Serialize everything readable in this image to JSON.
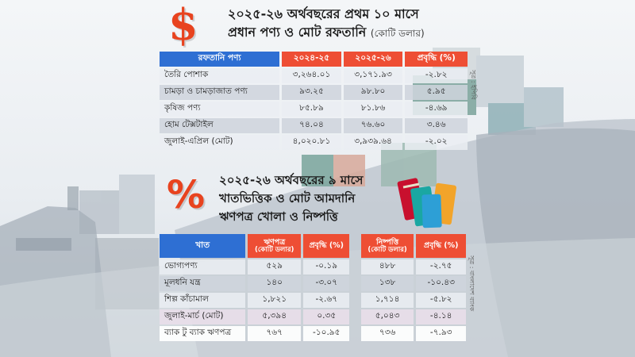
{
  "top": {
    "title_line1": "২০২৫-২৬ অর্থবছরের প্রথম ১০ মাসে",
    "title_line2": "প্রধান পণ্য ও মোট রফতানি",
    "title_unit": "(কোটি ডলার)",
    "symbol": "$",
    "headers": [
      "রফতানি পণ্য",
      "২০২৪-২৫",
      "২০২৫-২৬",
      "প্রবৃদ্ধি (%)"
    ],
    "rows": [
      {
        "item": "তৈরি পোশাক",
        "y2425": "৩,২৬৪.০১",
        "y2526": "৩,১৭১.৯৩",
        "growth": "-২.৮২"
      },
      {
        "item": "চামড়া ও চামড়াজাত পণ্য",
        "y2425": "৯৩.২৫",
        "y2526": "৯৮.৮০",
        "growth": "৫.৯৫"
      },
      {
        "item": "কৃষিজ পণ্য",
        "y2425": "৮৫.৮৯",
        "y2526": "৮১.৮৬",
        "growth": "-৪.৬৯"
      },
      {
        "item": "হোম টেক্সটাইল",
        "y2425": "৭৪.০৪",
        "y2526": "৭৬.৬০",
        "growth": "৩.৪৬"
      },
      {
        "item": "জুলাই-এপ্রিল (মোট)",
        "y2425": "৪,০২০.৮১",
        "y2526": "৩,৯৩৯.৬৪",
        "growth": "-২.০২"
      }
    ],
    "source": "সূত্র : ইপিবি"
  },
  "bottom": {
    "title_line1": "২০২৫-২৬ অর্থবছরের ৯ মাসে",
    "title_line2": "খাতভিত্তিক ও মোট আমদানি",
    "title_line3": "ঋণপত্র খোলা ও নিষ্পত্তি",
    "symbol": "%",
    "headers": {
      "sector": "খাত",
      "lc_open": "ঋণপত্র",
      "lc_open_unit": "(কোটি ডলার)",
      "growth1": "প্রবৃদ্ধি (%)",
      "settle": "নিষ্পত্তি",
      "settle_unit": "(কোটি ডলার)",
      "growth2": "প্রবৃদ্ধি (%)"
    },
    "rows": [
      {
        "sector": "ভোগ্যপণ্য",
        "lc": "৫২৯",
        "g1": "-০.১৯",
        "settle": "৪৮৮",
        "g2": "-২.৭৫"
      },
      {
        "sector": "মূলধনি যন্ত্র",
        "lc": "১৪০",
        "g1": "-৩.০৭",
        "settle": "১৩৮",
        "g2": "-১০.৪৩"
      },
      {
        "sector": "শিল্প কাঁচামাল",
        "lc": "১,৮২১",
        "g1": "-২.৬৭",
        "settle": "১,৭১৪",
        "g2": "-৫.৮২"
      },
      {
        "sector": "জুলাই-মার্চ (মোট)",
        "lc": "৫,৩৯৪",
        "g1": "০.৩৫",
        "settle": "৫,০৪৩",
        "g2": "-৪.১৪"
      },
      {
        "sector": "ব্যাক টু ব্যাক ঋণপত্র",
        "lc": "৭৬৭",
        "g1": "-১০.৯৫",
        "settle": "৭৩৬",
        "g2": "-৭.৯৩"
      }
    ],
    "source": "সূত্র : বাংলাদেশ ব্যাংক"
  },
  "colors": {
    "header_blue": "#2e6fd3",
    "header_red": "#ee4e34",
    "accent_orange": "#e8431f"
  },
  "decor": {
    "background": "cargo-ship-illustration",
    "spools": "thread-spools-illustration"
  }
}
